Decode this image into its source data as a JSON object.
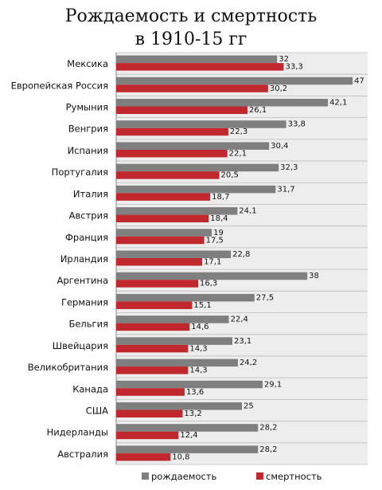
{
  "title_lines": [
    "Рождаемость и смертность",
    "в 1910-15 гг"
  ],
  "legend": {
    "birth": "рождаемость",
    "death": "смертность"
  },
  "colors": {
    "birth": "#7f7f7f",
    "death": "#c0282d",
    "plot_bg": "#ededed",
    "grid": "#bdbdbd"
  },
  "chart_data": {
    "type": "bar",
    "orientation": "horizontal",
    "categories": [
      "Мексика",
      "Европейская Россия",
      "Румыния",
      "Венгрия",
      "Испания",
      "Португалия",
      "Италия",
      "Австрия",
      "Франция",
      "Ирландия",
      "Аргентина",
      "Германия",
      "Бельгия",
      "Швейцария",
      "Великобритания",
      "Канада",
      "США",
      "Нидерланды",
      "Австралия"
    ],
    "series": [
      {
        "name": "рождаемость",
        "values": [
          32,
          47,
          42.1,
          33.8,
          30.4,
          32.3,
          31.7,
          24.1,
          19,
          22.8,
          38,
          27.5,
          22.4,
          23.1,
          24.2,
          29.1,
          25,
          28.2,
          28.2
        ],
        "labels": [
          "32",
          "47",
          "42,1",
          "33,8",
          "30,4",
          "32,3",
          "31,7",
          "24,1",
          "19",
          "22,8",
          "38",
          "27,5",
          "22,4",
          "23,1",
          "24,2",
          "29,1",
          "25",
          "28,2",
          "28,2"
        ]
      },
      {
        "name": "смертность",
        "values": [
          33.3,
          30.2,
          26.1,
          22.3,
          22.1,
          20.5,
          18.7,
          18.4,
          17.5,
          17.1,
          16.3,
          15.1,
          14.6,
          14.3,
          14.3,
          13.6,
          13.2,
          12.4,
          10.8
        ],
        "labels": [
          "33,3",
          "30,2",
          "26,1",
          "22,3",
          "22,1",
          "20,5",
          "18,7",
          "18,4",
          "17,5",
          "17,1",
          "16,3",
          "15,1",
          "14,6",
          "14,3",
          "14,3",
          "13,6",
          "13,2",
          "12,4",
          "10,8"
        ]
      }
    ],
    "xlim": [
      0,
      50
    ],
    "grid": true,
    "legend_position": "bottom"
  }
}
